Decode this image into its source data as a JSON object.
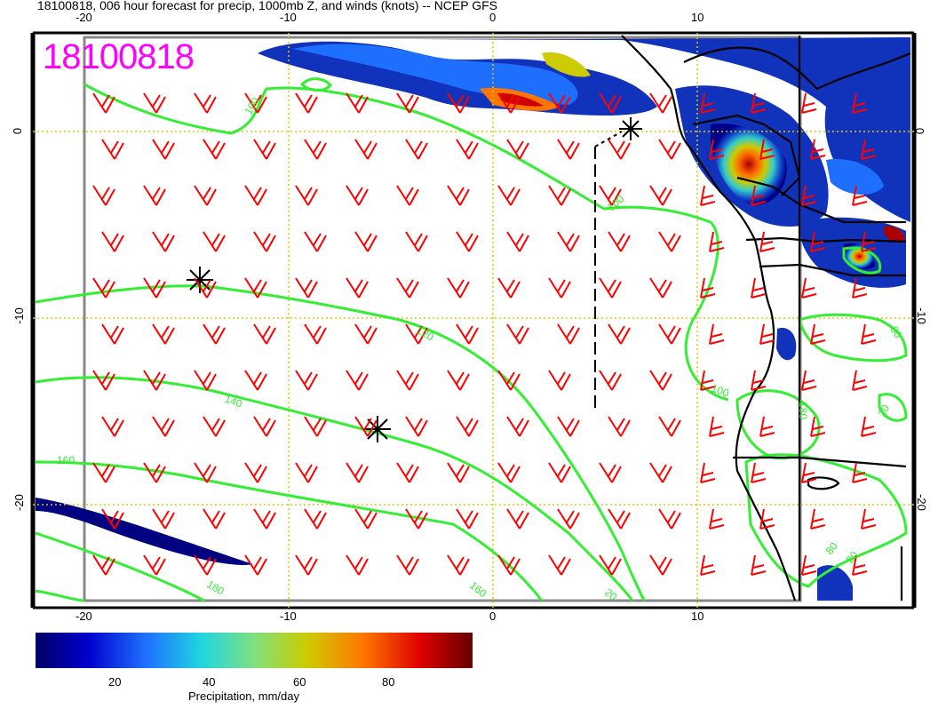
{
  "title": "18100818, 006 hour forecast for precip, 1000mb Z, and winds (knots) -- NCEP GFS",
  "stamp": "18100818",
  "axes": {
    "top_ticks": [
      "-20",
      "-10",
      "0",
      "10"
    ],
    "bottom_ticks": [
      "-20",
      "-10",
      "0",
      "10"
    ],
    "left_ticks": [
      "0",
      "-10",
      "-20"
    ],
    "right_ticks": [
      "0",
      "-10",
      "-20"
    ]
  },
  "contour_labels": [
    "100",
    "100",
    "100",
    "120",
    "140",
    "160",
    "160",
    "180",
    "180",
    "80",
    "80",
    "20",
    "20",
    "20"
  ],
  "colorbar": {
    "label": "Precipitation, mm/day",
    "ticks": [
      "20",
      "40",
      "60",
      "80"
    ]
  },
  "colors": {
    "contour": "#33ee33",
    "wind": "#ff0000",
    "coast": "#000000",
    "grid": "#ddcc00",
    "stamp": "#ff00ff"
  }
}
